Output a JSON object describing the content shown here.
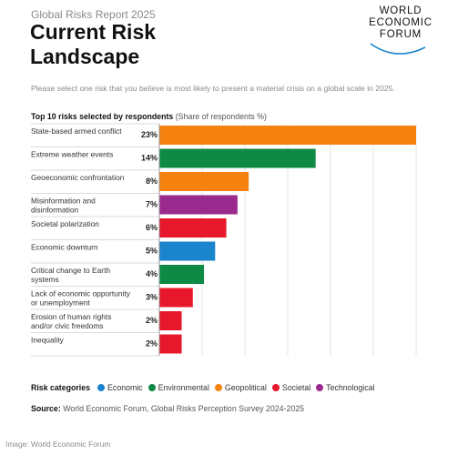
{
  "header": {
    "report": "Global Risks Report 2025",
    "title_line1": "Current Risk",
    "title_line2": "Landscape"
  },
  "logo": {
    "line1": "WORLD",
    "line2": "ECONOMIC",
    "line3": "FORUM"
  },
  "question": "Please select one risk that you believe is most likely to present a material crisis on a global scale in 2025.",
  "chart_heading": {
    "bold": "Top 10 risks selected by respondents",
    "sub": "(Share of respondents %)"
  },
  "colors": {
    "Economic": "#1a84cc",
    "Environmental": "#0f8a45",
    "Geopolitical": "#f5820f",
    "Societal": "#e8182c",
    "Technological": "#9b2a8f"
  },
  "chart_data": {
    "type": "bar",
    "orientation": "horizontal",
    "title": "Top 10 risks selected by respondents",
    "xlabel": "Share of respondents %",
    "xlim": [
      0,
      23
    ],
    "grid": true,
    "categories": [
      [
        "State-based armed conflict"
      ],
      [
        "Extreme weather events"
      ],
      [
        "Geoeconomic confrontation"
      ],
      [
        "Misinformation and",
        "disinformation"
      ],
      [
        "Societal polarization"
      ],
      [
        "Economic downturn"
      ],
      [
        "Critical change to Earth",
        "systems"
      ],
      [
        "Lack of economic opportunity",
        "or unemployment"
      ],
      [
        "Erosion of human rights",
        "and/or civic freedoms"
      ],
      [
        "Inequality"
      ]
    ],
    "values": [
      23,
      14,
      8,
      7,
      6,
      5,
      4,
      3,
      2,
      2
    ],
    "value_labels": [
      "23%",
      "14%",
      "8%",
      "7%",
      "6%",
      "5%",
      "4%",
      "3%",
      "2%",
      "2%"
    ],
    "risk_category": [
      "Geopolitical",
      "Environmental",
      "Geopolitical",
      "Technological",
      "Societal",
      "Economic",
      "Environmental",
      "Societal",
      "Societal",
      "Societal"
    ]
  },
  "legend": {
    "label": "Risk categories",
    "items": [
      "Economic",
      "Environmental",
      "Geopolitical",
      "Societal",
      "Technological"
    ]
  },
  "source": {
    "bold": "Source:",
    "text": "World Economic Forum, Global Risks Perception Survey 2024-2025"
  },
  "credit": "Image: World Economic Forum"
}
